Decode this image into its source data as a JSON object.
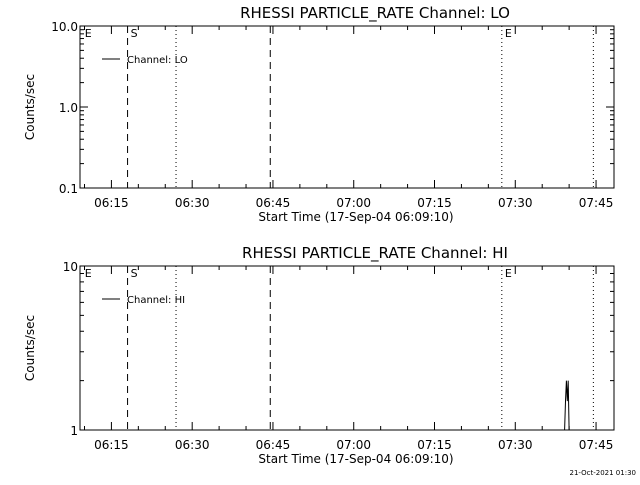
{
  "chart_data": [
    {
      "type": "line",
      "title": "RHESSI PARTICLE_RATE Channel: LO",
      "xlabel": "Start Time (17-Sep-04 06:09:10)",
      "ylabel": "Counts/sec",
      "y_scale": "log",
      "ylim": [
        0.1,
        10.0
      ],
      "y_ticks": [
        {
          "value": 10.0,
          "label": "10.0"
        },
        {
          "value": 1.0,
          "label": "1.0"
        },
        {
          "value": 0.1,
          "label": "0.1"
        }
      ],
      "xlim": [
        "06:09:10",
        "07:48:20"
      ],
      "x_ticks": [
        "06:15",
        "06:30",
        "06:45",
        "07:00",
        "07:15",
        "07:30",
        "07:45"
      ],
      "legend": {
        "position": "top-left",
        "entries": [
          "Channel: LO"
        ]
      },
      "series": [
        {
          "name": "Channel: LO",
          "x": [],
          "y": []
        }
      ],
      "markers": [
        {
          "time": "06:09:30",
          "label": "E",
          "style": "none"
        },
        {
          "time": "06:18:00",
          "label": "S",
          "style": "dashed"
        },
        {
          "time": "06:27:00",
          "label": "",
          "style": "dotted"
        },
        {
          "time": "06:44:30",
          "label": "",
          "style": "dashed"
        },
        {
          "time": "07:27:30",
          "label": "E",
          "style": "dotted"
        },
        {
          "time": "07:44:30",
          "label": "",
          "style": "dotted"
        }
      ]
    },
    {
      "type": "line",
      "title": "RHESSI PARTICLE_RATE Channel: HI",
      "xlabel": "Start Time (17-Sep-04 06:09:10)",
      "ylabel": "Counts/sec",
      "y_scale": "log",
      "ylim": [
        1,
        10
      ],
      "y_ticks": [
        {
          "value": 10,
          "label": "10"
        },
        {
          "value": 1,
          "label": "1"
        }
      ],
      "xlim": [
        "06:09:10",
        "07:48:20"
      ],
      "x_ticks": [
        "06:15",
        "06:30",
        "06:45",
        "07:00",
        "07:15",
        "07:30",
        "07:45"
      ],
      "legend": {
        "position": "top-left",
        "entries": [
          "Channel: HI"
        ]
      },
      "series": [
        {
          "name": "Channel: HI",
          "x": [
            "07:39:10",
            "07:39:20",
            "07:39:30",
            "07:39:40",
            "07:39:50",
            "07:40:00"
          ],
          "y": [
            1,
            1.5,
            2.0,
            1.5,
            2.0,
            1
          ]
        }
      ],
      "markers": [
        {
          "time": "06:09:30",
          "label": "E",
          "style": "none"
        },
        {
          "time": "06:18:00",
          "label": "S",
          "style": "dashed"
        },
        {
          "time": "06:27:00",
          "label": "",
          "style": "dotted"
        },
        {
          "time": "06:44:30",
          "label": "",
          "style": "dashed"
        },
        {
          "time": "07:27:30",
          "label": "E",
          "style": "dotted"
        },
        {
          "time": "07:44:30",
          "label": "",
          "style": "dotted"
        }
      ]
    }
  ],
  "footer": {
    "timestamp": "21-Oct-2021 01:30"
  }
}
